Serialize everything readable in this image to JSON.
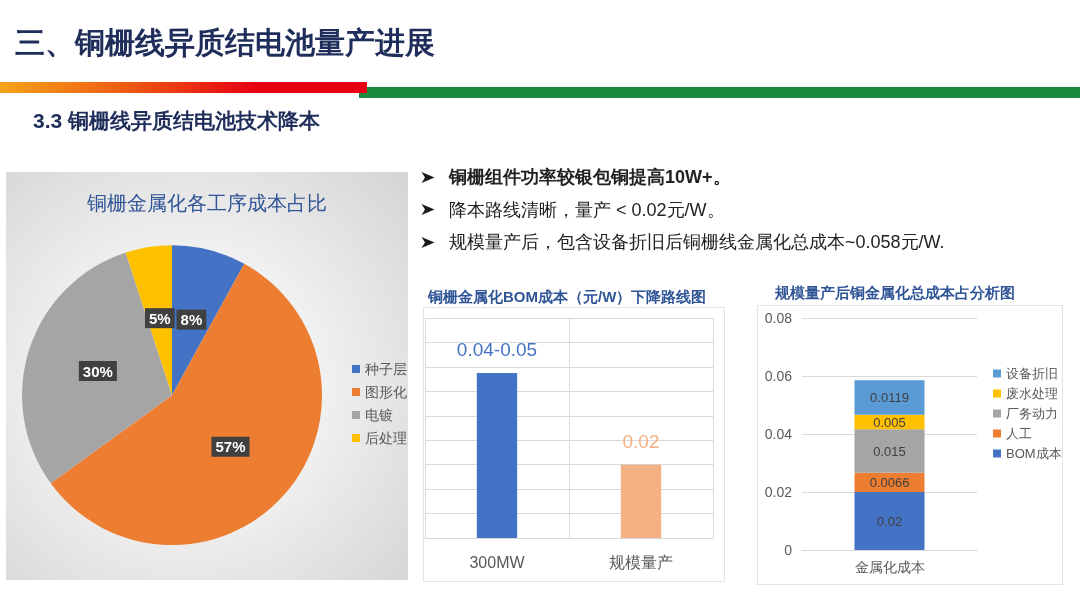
{
  "chart_data": [
    {
      "type": "other",
      "title": "三、铜栅线异质结电池量产进展",
      "subtitle": "3.3 铜栅线异质结电池技术降本"
    },
    {
      "type": "pie",
      "title": "铜栅金属化各工序成本占比",
      "categories": [
        "种子层",
        "图形化",
        "电镀",
        "后处理"
      ],
      "values": [
        8,
        57,
        30,
        5
      ],
      "colors": [
        "#4472c4",
        "#ed7d31",
        "#a5a5a5",
        "#ffc000"
      ],
      "value_labels": [
        "8%",
        "57%",
        "30%",
        "5%"
      ],
      "legend": "right"
    },
    {
      "type": "other",
      "annotations": [
        "铜栅组件功率较银包铜提高10W+。",
        "降本路线清晰，量产 < 0.02元/W。",
        "规模量产后，包含设备折旧后铜栅线金属化总成本~0.058元/W."
      ]
    },
    {
      "type": "bar",
      "title": "铜栅金属化BOM成本（元/W）下降路线图",
      "categories": [
        "300MW",
        "规模量产"
      ],
      "values": [
        0.045,
        0.02
      ],
      "colors": [
        "#4472c4",
        "#f4b183"
      ],
      "value_labels": [
        "0.04-0.05",
        "0.02"
      ],
      "ylim": [
        0,
        0.06
      ],
      "yticks": [
        {
          "value": 0,
          "label": null
        },
        {
          "value": 0.0067,
          "label": null
        },
        {
          "value": 0.0133,
          "label": null
        },
        {
          "value": 0.02,
          "label": null
        },
        {
          "value": 0.0267,
          "label": null
        },
        {
          "value": 0.0333,
          "label": null
        },
        {
          "value": 0.04,
          "label": null
        },
        {
          "value": 0.0467,
          "label": null
        },
        {
          "value": 0.0533,
          "label": null
        },
        {
          "value": 0.06,
          "label": null
        }
      ],
      "tick_labels": "x",
      "grid": true
    },
    {
      "type": "bar",
      "title": "规模量产后铜金属化总成本占分析图",
      "categories": [
        "金属化成本"
      ],
      "stacked": true,
      "series": [
        {
          "name": "BOM成本",
          "color": "#4472c4",
          "values": [
            0.02
          ]
        },
        {
          "name": "人工",
          "color": "#ed7d31",
          "values": [
            0.0066
          ]
        },
        {
          "name": "厂务动力",
          "color": "#a5a5a5",
          "values": [
            0.015
          ]
        },
        {
          "name": "废水处理",
          "color": "#ffc000",
          "values": [
            0.005
          ]
        },
        {
          "name": "设备折旧",
          "color": "#5b9bd5",
          "values": [
            0.0119
          ]
        }
      ],
      "ylim": [
        0,
        0.08
      ],
      "yticks": [
        0,
        0.02,
        0.04,
        0.06,
        0.08
      ],
      "grid": "y",
      "legend": "right",
      "data_labels": true
    }
  ]
}
